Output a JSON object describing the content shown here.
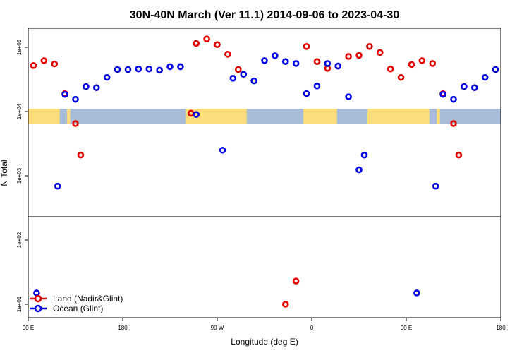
{
  "chart_data": {
    "type": "scatter",
    "title": "30N-40N March (Ver 11.1)   2014-09-06 to 2023-04-30",
    "xlabel": "Longitude (deg E)",
    "ylabel": "N Total",
    "x_axis": {
      "scale": "linear, wraps from 90 E through 180 and back to 180",
      "range": [
        90,
        540
      ],
      "ticks": [
        {
          "value": 90,
          "label": "90 E"
        },
        {
          "value": 180,
          "label": "180"
        },
        {
          "value": 270,
          "label": "90 W"
        },
        {
          "value": 360,
          "label": "0"
        },
        {
          "value": 450,
          "label": "90 E"
        },
        {
          "value": 540,
          "label": "180"
        }
      ]
    },
    "y_axis": {
      "scale": "log",
      "range": [
        7,
        300000
      ],
      "ticks": [
        {
          "value": 10,
          "label": "1e+01"
        },
        {
          "value": 100,
          "label": "1e+02"
        },
        {
          "value": 1000,
          "label": "1e+03"
        },
        {
          "value": 10000,
          "label": "1e+04"
        },
        {
          "value": 100000,
          "label": "1e+05"
        }
      ]
    },
    "grid": false,
    "legend_position": "bottom-left",
    "map_band": {
      "latitude_range": "30N-40N",
      "ocean_color": "#a8bcd8",
      "land_color": "#fddc7c"
    },
    "series": [
      {
        "name": "Land (Nadir&Glint)",
        "color": "#e50000",
        "points": [
          [
            95,
            52000
          ],
          [
            105,
            62000
          ],
          [
            115,
            55000
          ],
          [
            125,
            19000
          ],
          [
            135,
            6500
          ],
          [
            140,
            2100
          ],
          [
            245,
            9400
          ],
          [
            250,
            115000
          ],
          [
            260,
            135000
          ],
          [
            270,
            110000
          ],
          [
            280,
            78000
          ],
          [
            290,
            45000
          ],
          [
            335,
            10
          ],
          [
            345,
            23
          ],
          [
            355,
            103000
          ],
          [
            365,
            60000
          ],
          [
            375,
            47000
          ],
          [
            385,
            51000
          ],
          [
            395,
            72000
          ],
          [
            405,
            75000
          ],
          [
            415,
            103000
          ],
          [
            425,
            83000
          ],
          [
            435,
            46000
          ],
          [
            445,
            34000
          ],
          [
            455,
            54000
          ],
          [
            465,
            62000
          ],
          [
            475,
            56000
          ],
          [
            485,
            19000
          ],
          [
            495,
            6500
          ],
          [
            500,
            2100
          ]
        ]
      },
      {
        "name": "Ocean (Glint)",
        "color": "#0000e5",
        "points": [
          [
            98,
            15
          ],
          [
            118,
            690
          ],
          [
            125,
            18500
          ],
          [
            135,
            15500
          ],
          [
            145,
            24500
          ],
          [
            155,
            23500
          ],
          [
            165,
            34000
          ],
          [
            175,
            45000
          ],
          [
            185,
            45000
          ],
          [
            195,
            46000
          ],
          [
            205,
            46000
          ],
          [
            215,
            44000
          ],
          [
            225,
            50000
          ],
          [
            235,
            50000
          ],
          [
            250,
            9000
          ],
          [
            275,
            2500
          ],
          [
            285,
            33000
          ],
          [
            295,
            38000
          ],
          [
            305,
            30000
          ],
          [
            315,
            62000
          ],
          [
            325,
            74000
          ],
          [
            335,
            60000
          ],
          [
            345,
            56000
          ],
          [
            355,
            19000
          ],
          [
            365,
            25000
          ],
          [
            375,
            56000
          ],
          [
            385,
            51000
          ],
          [
            395,
            17000
          ],
          [
            405,
            1240
          ],
          [
            410,
            2100
          ],
          [
            460,
            15
          ],
          [
            478,
            690
          ],
          [
            485,
            18500
          ],
          [
            495,
            15500
          ],
          [
            505,
            24500
          ],
          [
            515,
            23500
          ],
          [
            525,
            34000
          ],
          [
            535,
            45000
          ]
        ]
      }
    ]
  }
}
